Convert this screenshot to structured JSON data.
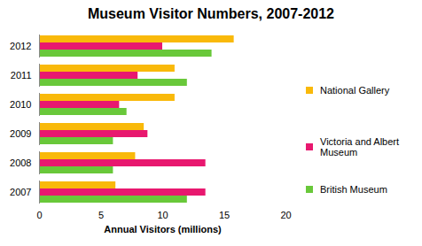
{
  "chart_data": {
    "type": "bar",
    "orientation": "horizontal",
    "title": "Museum Visitor Numbers, 2007-2012",
    "x_label": "Annual Visitors (millions)",
    "categories": [
      "2007",
      "2008",
      "2009",
      "2010",
      "2011",
      "2012"
    ],
    "series": [
      {
        "name": "National Gallery",
        "color": "#F9B90A",
        "values": [
          6.2,
          7.8,
          8.5,
          11,
          11,
          15.8
        ]
      },
      {
        "name": "Victoria and Albert Museum",
        "color": "#E8186F",
        "values": [
          13.5,
          13.5,
          8.8,
          6.5,
          8,
          10
        ]
      },
      {
        "name": "British Museum",
        "color": "#69C83A",
        "values": [
          12,
          6,
          6,
          7.1,
          12,
          14
        ]
      }
    ],
    "xlim": [
      0,
      20
    ],
    "xticks": [
      0,
      5,
      10,
      15,
      20
    ],
    "grid": false,
    "legend": "right"
  }
}
